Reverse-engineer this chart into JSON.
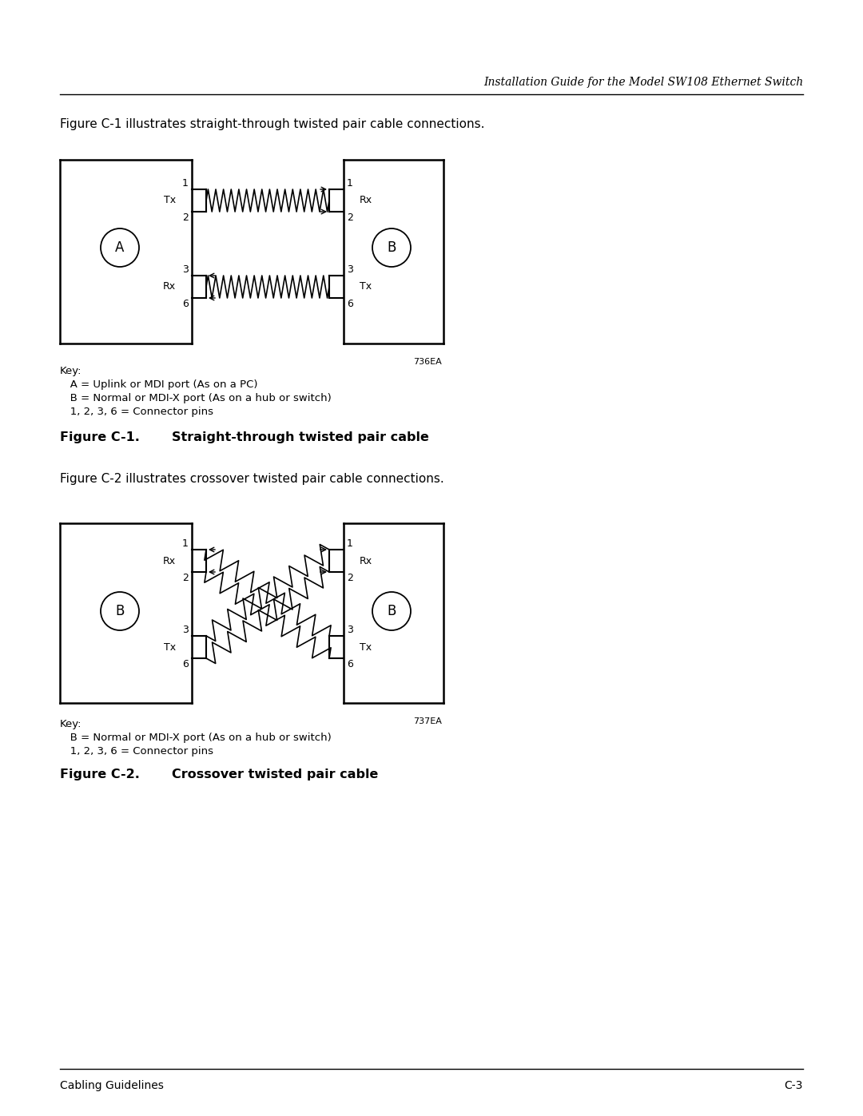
{
  "page_title": "Installation Guide for the Model SW108 Ethernet Switch",
  "footer_left": "Cabling Guidelines",
  "footer_right": "C-3",
  "fig1_intro": "Figure C-1 illustrates straight-through twisted pair cable connections.",
  "fig1_caption_label": "Figure C-1.",
  "fig1_caption_text": "Straight-through twisted pair cable",
  "fig2_intro": "Figure C-2 illustrates crossover twisted pair cable connections.",
  "fig2_caption_label": "Figure C-2.",
  "fig2_caption_text": "Crossover twisted pair cable",
  "fig1_key": [
    "Key:",
    "   A = Uplink or MDI port (As on a PC)",
    "   B = Normal or MDI-X port (As on a hub or switch)",
    "   1, 2, 3, 6 = Connector pins"
  ],
  "fig2_key": [
    "Key:",
    "   B = Normal or MDI-X port (As on a hub or switch)",
    "   1, 2, 3, 6 = Connector pins"
  ],
  "fig1_code": "736EA",
  "fig2_code": "737EA",
  "bg_color": "#ffffff",
  "line_color": "#000000"
}
